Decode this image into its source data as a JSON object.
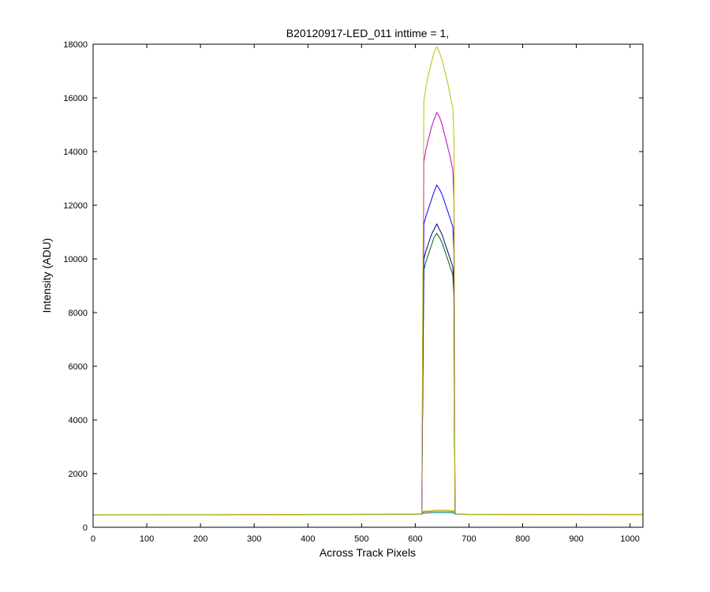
{
  "chart_data": {
    "type": "line",
    "title": "B20120917-LED_011 inttime = 1,",
    "xlabel": "Across Track Pixels",
    "ylabel": "Intensity (ADU)",
    "xlim": [
      0,
      1024
    ],
    "ylim": [
      0,
      18000
    ],
    "xticks": [
      0,
      100,
      200,
      300,
      400,
      500,
      600,
      700,
      800,
      900,
      1000
    ],
    "yticks": [
      0,
      2000,
      4000,
      6000,
      8000,
      10000,
      12000,
      14000,
      16000,
      18000
    ],
    "grid": false,
    "legend": "none",
    "series": [
      {
        "color": "#00bfbf",
        "x": [
          0,
          200,
          400,
          600,
          612,
          615,
          640,
          660,
          672,
          675,
          700,
          1024
        ],
        "y": [
          460,
          462,
          470,
          480,
          490,
          520,
          540,
          540,
          530,
          490,
          475,
          470
        ]
      },
      {
        "color": "#bf4000",
        "x": [
          0,
          200,
          400,
          600,
          612,
          615,
          640,
          660,
          672,
          675,
          700,
          1024
        ],
        "y": [
          465,
          470,
          480,
          490,
          500,
          560,
          590,
          590,
          570,
          500,
          480,
          475
        ]
      },
      {
        "color": "#bfbf00",
        "x": [
          0,
          200,
          400,
          600,
          612,
          615,
          640,
          660,
          672,
          675,
          700,
          1024
        ],
        "y": [
          470,
          475,
          485,
          495,
          505,
          600,
          640,
          640,
          610,
          505,
          485,
          480
        ]
      },
      {
        "color": "#006400",
        "x": [
          612,
          614,
          616,
          620,
          625,
          630,
          635,
          640,
          645,
          650,
          655,
          660,
          665,
          670,
          672,
          674
        ],
        "y": [
          480,
          5000,
          9600,
          9900,
          10200,
          10500,
          10800,
          10950,
          10800,
          10600,
          10300,
          10000,
          9700,
          9400,
          8600,
          480
        ]
      },
      {
        "color": "#000080",
        "x": [
          612,
          614,
          616,
          620,
          625,
          630,
          635,
          640,
          645,
          650,
          655,
          660,
          665,
          670,
          672,
          674
        ],
        "y": [
          480,
          5400,
          10000,
          10300,
          10600,
          10900,
          11100,
          11300,
          11100,
          10900,
          10600,
          10300,
          10000,
          9700,
          8900,
          480
        ]
      },
      {
        "color": "#0000ff",
        "x": [
          612,
          614,
          616,
          620,
          625,
          630,
          635,
          640,
          645,
          650,
          655,
          660,
          665,
          670,
          672,
          674
        ],
        "y": [
          480,
          6000,
          11300,
          11600,
          11900,
          12200,
          12500,
          12750,
          12600,
          12400,
          12100,
          11800,
          11500,
          11200,
          10300,
          480
        ]
      },
      {
        "color": "#bf00bf",
        "x": [
          612,
          614,
          616,
          620,
          625,
          630,
          635,
          640,
          645,
          650,
          655,
          660,
          665,
          670,
          672,
          674
        ],
        "y": [
          480,
          7000,
          13600,
          14100,
          14500,
          14900,
          15200,
          15450,
          15300,
          15000,
          14600,
          14200,
          13800,
          13300,
          12200,
          480
        ]
      },
      {
        "color": "#bfbf00",
        "x": [
          612,
          614,
          616,
          620,
          625,
          630,
          635,
          640,
          645,
          650,
          655,
          660,
          665,
          670,
          672,
          674
        ],
        "y": [
          480,
          8500,
          15900,
          16400,
          16900,
          17300,
          17700,
          17900,
          17700,
          17400,
          17000,
          16600,
          16100,
          15600,
          14500,
          480
        ]
      }
    ]
  }
}
